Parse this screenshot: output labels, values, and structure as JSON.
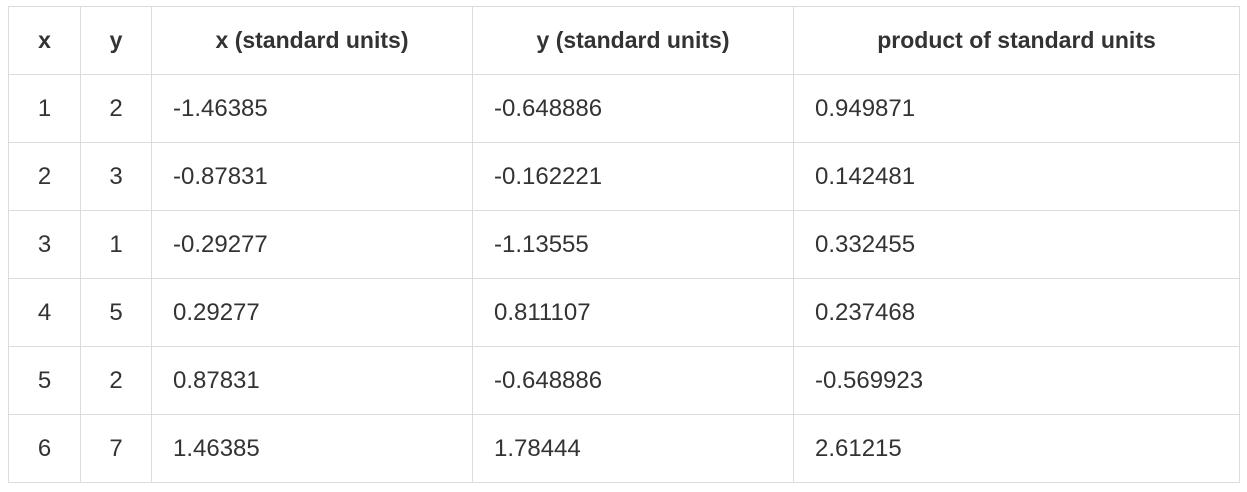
{
  "table": {
    "headers": [
      "x",
      "y",
      "x (standard units)",
      "y (standard units)",
      "product of standard units"
    ],
    "rows": [
      [
        "1",
        "2",
        "-1.46385",
        "-0.648886",
        "0.949871"
      ],
      [
        "2",
        "3",
        "-0.87831",
        "-0.162221",
        "0.142481"
      ],
      [
        "3",
        "1",
        "-0.29277",
        "-1.13555",
        "0.332455"
      ],
      [
        "4",
        "5",
        "0.29277",
        "0.811107",
        "0.237468"
      ],
      [
        "5",
        "2",
        "0.87831",
        "-0.648886",
        "-0.569923"
      ],
      [
        "6",
        "7",
        "1.46385",
        "1.78444",
        "2.61215"
      ]
    ]
  }
}
